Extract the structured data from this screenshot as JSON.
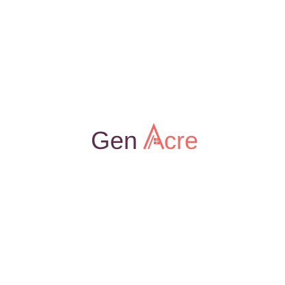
{
  "logo": {
    "brand_text": "GenAcre",
    "word_part_1": "Gen",
    "word_part_2": "cre",
    "colors": {
      "primary": "#5a2d4f",
      "accent": "#ef6b66"
    },
    "icon": "house-roof-icon"
  }
}
